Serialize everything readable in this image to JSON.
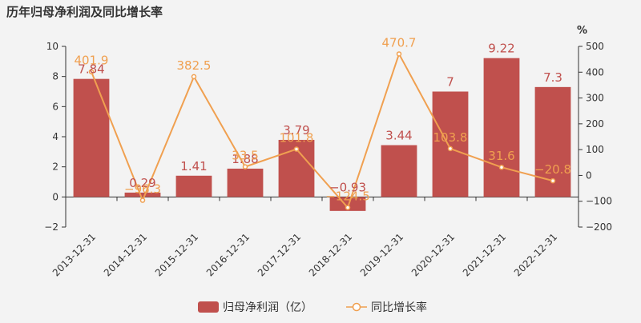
{
  "chart_data": {
    "type": "bar",
    "title": "历年归母净利润及同比增长率",
    "categories": [
      "2013-12-31",
      "2014-12-31",
      "2015-12-31",
      "2016-12-31",
      "2017-12-31",
      "2018-12-31",
      "2019-12-31",
      "2020-12-31",
      "2021-12-31",
      "2022-12-31"
    ],
    "series": [
      {
        "name": "归母净利润（亿）",
        "type": "bar",
        "axis": "left",
        "values": [
          7.84,
          0.29,
          1.41,
          1.88,
          3.79,
          -0.93,
          3.44,
          7,
          9.22,
          7.3
        ],
        "labels": [
          "7.84",
          "0.29",
          "1.41",
          "1.88",
          "3.79",
          "−0.93",
          "3.44",
          "7",
          "9.22",
          "7.3"
        ]
      },
      {
        "name": "同比增长率",
        "type": "line",
        "axis": "right",
        "values": [
          401.9,
          -96.3,
          382.5,
          33.5,
          101.8,
          -124.5,
          470.7,
          103.8,
          31.6,
          -20.8
        ],
        "labels": [
          "401.9",
          "−96.3",
          "382.5",
          "33.5",
          "101.8",
          "−124.5",
          "470.7",
          "103.8",
          "31.6",
          "−20.8"
        ]
      }
    ],
    "left_axis": {
      "min": -2,
      "max": 10,
      "ticks": [
        "−2",
        "0",
        "2",
        "4",
        "6",
        "8",
        "10"
      ],
      "tick_values": [
        -2,
        0,
        2,
        4,
        6,
        8,
        10
      ]
    },
    "right_axis": {
      "min": -200,
      "max": 500,
      "unit": "%",
      "ticks": [
        "−200",
        "−100",
        "0",
        "100",
        "200",
        "300",
        "400",
        "500"
      ],
      "tick_values": [
        -200,
        -100,
        0,
        100,
        200,
        300,
        400,
        500
      ]
    },
    "grid": false,
    "legend_position": "bottom-center",
    "colors": {
      "bar": "#c0504d",
      "line": "#f0a050",
      "bar_label": "#c0504d",
      "line_label": "#f0a050",
      "axis_text": "#333333"
    }
  }
}
